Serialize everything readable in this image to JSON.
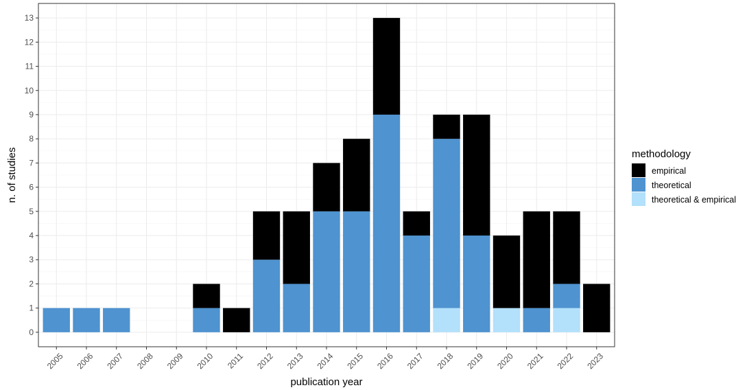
{
  "chart_data": {
    "type": "bar",
    "stacked": true,
    "categories": [
      "2005",
      "2006",
      "2007",
      "2008",
      "2009",
      "2010",
      "2011",
      "2012",
      "2013",
      "2014",
      "2015",
      "2016",
      "2017",
      "2018",
      "2019",
      "2020",
      "2021",
      "2022",
      "2023"
    ],
    "series": [
      {
        "name": "empirical",
        "color": "#000000",
        "values": [
          0,
          0,
          0,
          0,
          0,
          1,
          1,
          2,
          3,
          2,
          3,
          4,
          1,
          1,
          5,
          3,
          4,
          3,
          2
        ]
      },
      {
        "name": "theoretical",
        "color": "#4f93d0",
        "values": [
          1,
          1,
          1,
          0,
          0,
          1,
          0,
          3,
          2,
          5,
          5,
          9,
          4,
          7,
          4,
          0,
          1,
          1,
          0
        ]
      },
      {
        "name": "theoretical & empirical",
        "color": "#b3e0fb",
        "values": [
          0,
          0,
          0,
          0,
          0,
          0,
          0,
          0,
          0,
          0,
          0,
          0,
          0,
          1,
          0,
          1,
          0,
          1,
          0
        ]
      }
    ],
    "stack_order_bottom_to_top": [
      "theoretical & empirical",
      "theoretical",
      "empirical"
    ],
    "xlabel": "publication year",
    "ylabel": "n. of studies",
    "ylim": [
      0,
      13
    ],
    "yticks": [
      0,
      1,
      2,
      3,
      4,
      5,
      6,
      7,
      8,
      9,
      10,
      11,
      12,
      13
    ],
    "grid": true,
    "legend": {
      "title": "methodology",
      "placement": "right"
    }
  }
}
